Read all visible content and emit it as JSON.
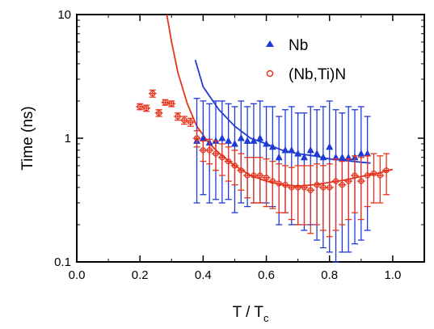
{
  "chart_data": {
    "type": "scatter",
    "xlabel": "T / T",
    "xlabel_sub": "c",
    "ylabel": "Time (ns)",
    "xlim": [
      0.0,
      1.1
    ],
    "ylim": [
      0.1,
      10
    ],
    "yscale": "log",
    "grid": false,
    "legend_position": "top-right",
    "x_ticks": [
      0.0,
      0.2,
      0.4,
      0.6,
      0.8,
      1.0
    ],
    "x_tick_labels": [
      "0.0",
      "0.2",
      "0.4",
      "0.6",
      "0.8",
      "1.0"
    ],
    "y_ticks": [
      0.1,
      1,
      10
    ],
    "y_tick_labels": [
      "0.1",
      "1",
      "10"
    ],
    "series": [
      {
        "name": "Nb",
        "marker": "filled-triangle",
        "color": "#1f3bd6",
        "x": [
          0.38,
          0.4,
          0.42,
          0.44,
          0.46,
          0.48,
          0.5,
          0.52,
          0.54,
          0.56,
          0.58,
          0.6,
          0.62,
          0.64,
          0.66,
          0.68,
          0.7,
          0.72,
          0.74,
          0.76,
          0.78,
          0.8,
          0.82,
          0.84,
          0.86,
          0.88,
          0.9,
          0.92
        ],
        "y": [
          0.95,
          1.0,
          0.92,
          0.95,
          1.0,
          0.95,
          0.9,
          1.0,
          0.95,
          0.95,
          1.0,
          0.9,
          0.85,
          0.7,
          0.8,
          0.8,
          0.75,
          0.7,
          0.8,
          0.75,
          0.7,
          0.85,
          0.7,
          0.7,
          0.7,
          0.7,
          0.75,
          0.75
        ],
        "y_low": [
          0.3,
          0.35,
          0.3,
          0.32,
          0.3,
          0.32,
          0.25,
          0.3,
          0.28,
          0.3,
          0.3,
          0.3,
          0.28,
          0.2,
          0.25,
          0.2,
          0.2,
          0.18,
          0.2,
          0.15,
          0.13,
          0.12,
          0.1,
          0.12,
          0.12,
          0.14,
          0.15,
          0.18
        ],
        "y_high": [
          2.1,
          2.0,
          1.9,
          2.0,
          2.0,
          1.9,
          1.8,
          2.0,
          1.8,
          1.9,
          2.0,
          1.8,
          1.8,
          1.5,
          1.7,
          1.8,
          1.6,
          1.6,
          1.8,
          1.7,
          1.8,
          2.0,
          1.7,
          1.6,
          1.8,
          1.7,
          1.8,
          1.5
        ]
      },
      {
        "name": "(Nb,Ti)N",
        "marker": "open-circle",
        "color": "#e8341c",
        "x": [
          0.2,
          0.22,
          0.24,
          0.26,
          0.28,
          0.3,
          0.32,
          0.34,
          0.36,
          0.38,
          0.4,
          0.42,
          0.44,
          0.46,
          0.48,
          0.5,
          0.52,
          0.54,
          0.56,
          0.58,
          0.6,
          0.62,
          0.64,
          0.66,
          0.68,
          0.7,
          0.72,
          0.74,
          0.76,
          0.78,
          0.8,
          0.82,
          0.84,
          0.86,
          0.88,
          0.9,
          0.92,
          0.94,
          0.96,
          0.98
        ],
        "y": [
          1.8,
          1.75,
          2.3,
          1.6,
          1.95,
          1.9,
          1.5,
          1.4,
          1.35,
          1.0,
          0.8,
          0.8,
          0.75,
          0.7,
          0.65,
          0.6,
          0.55,
          0.5,
          0.5,
          0.5,
          0.48,
          0.45,
          0.43,
          0.42,
          0.4,
          0.4,
          0.4,
          0.38,
          0.42,
          0.4,
          0.4,
          0.45,
          0.42,
          0.45,
          0.5,
          0.45,
          0.5,
          0.52,
          0.5,
          0.55
        ],
        "y_low": [
          1.7,
          1.65,
          2.15,
          1.5,
          1.85,
          1.8,
          1.4,
          1.3,
          1.25,
          0.85,
          0.65,
          0.62,
          0.55,
          0.5,
          0.45,
          0.42,
          0.38,
          0.33,
          0.3,
          0.3,
          0.28,
          0.27,
          0.25,
          0.25,
          0.22,
          0.2,
          0.2,
          0.17,
          0.2,
          0.18,
          0.16,
          0.18,
          0.2,
          0.22,
          0.25,
          0.22,
          0.28,
          0.3,
          0.3,
          0.35
        ],
        "y_high": [
          1.9,
          1.85,
          2.45,
          1.7,
          2.05,
          2.0,
          1.6,
          1.5,
          1.45,
          1.15,
          0.95,
          0.98,
          0.95,
          0.9,
          0.85,
          0.8,
          0.75,
          0.7,
          0.7,
          0.7,
          0.68,
          0.65,
          0.62,
          0.6,
          0.58,
          0.6,
          0.6,
          0.6,
          0.62,
          0.6,
          0.62,
          0.68,
          0.65,
          0.68,
          0.72,
          0.7,
          0.72,
          0.75,
          0.72,
          0.75
        ]
      }
    ],
    "fits": [
      {
        "series": "Nb",
        "color": "#1f3bd6",
        "x": [
          0.375,
          0.4,
          0.45,
          0.5,
          0.55,
          0.6,
          0.65,
          0.7,
          0.75,
          0.8,
          0.85,
          0.9,
          0.93
        ],
        "y": [
          4.3,
          2.6,
          1.7,
          1.25,
          1.0,
          0.9,
          0.8,
          0.75,
          0.72,
          0.68,
          0.66,
          0.64,
          0.63
        ]
      },
      {
        "series": "(Nb,Ti)N",
        "color": "#e8341c",
        "x": [
          0.285,
          0.3,
          0.32,
          0.35,
          0.38,
          0.42,
          0.46,
          0.5,
          0.55,
          0.6,
          0.65,
          0.7,
          0.75,
          0.8,
          0.85,
          0.9,
          0.95,
          1.0
        ],
        "y": [
          10,
          6.0,
          3.4,
          1.9,
          1.25,
          0.9,
          0.72,
          0.6,
          0.5,
          0.45,
          0.42,
          0.41,
          0.42,
          0.44,
          0.46,
          0.49,
          0.52,
          0.56
        ]
      }
    ]
  }
}
